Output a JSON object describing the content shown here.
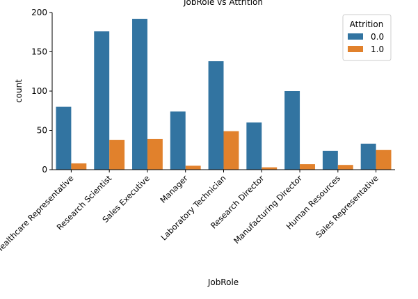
{
  "chart_data": {
    "type": "bar",
    "title": "JobRole vs Attrition",
    "xlabel": "JobRole",
    "ylabel": "count",
    "ylim": [
      0,
      200
    ],
    "yticks": [
      0,
      50,
      100,
      150,
      200
    ],
    "categories": [
      "Healthcare Representative",
      "Research Scientist",
      "Sales Executive",
      "Manager",
      "Laboratory Technician",
      "Research Director",
      "Manufacturing Director",
      "Human Resources",
      "Sales Representative"
    ],
    "series": [
      {
        "name": "0.0",
        "color": "#3274a1",
        "values": [
          80,
          176,
          192,
          74,
          138,
          60,
          100,
          24,
          33
        ]
      },
      {
        "name": "1.0",
        "color": "#e1812c",
        "values": [
          8,
          38,
          39,
          5,
          49,
          3,
          7,
          6,
          25
        ]
      }
    ],
    "legend": {
      "title": "Attrition",
      "placement": "top-right"
    },
    "grid": false
  }
}
